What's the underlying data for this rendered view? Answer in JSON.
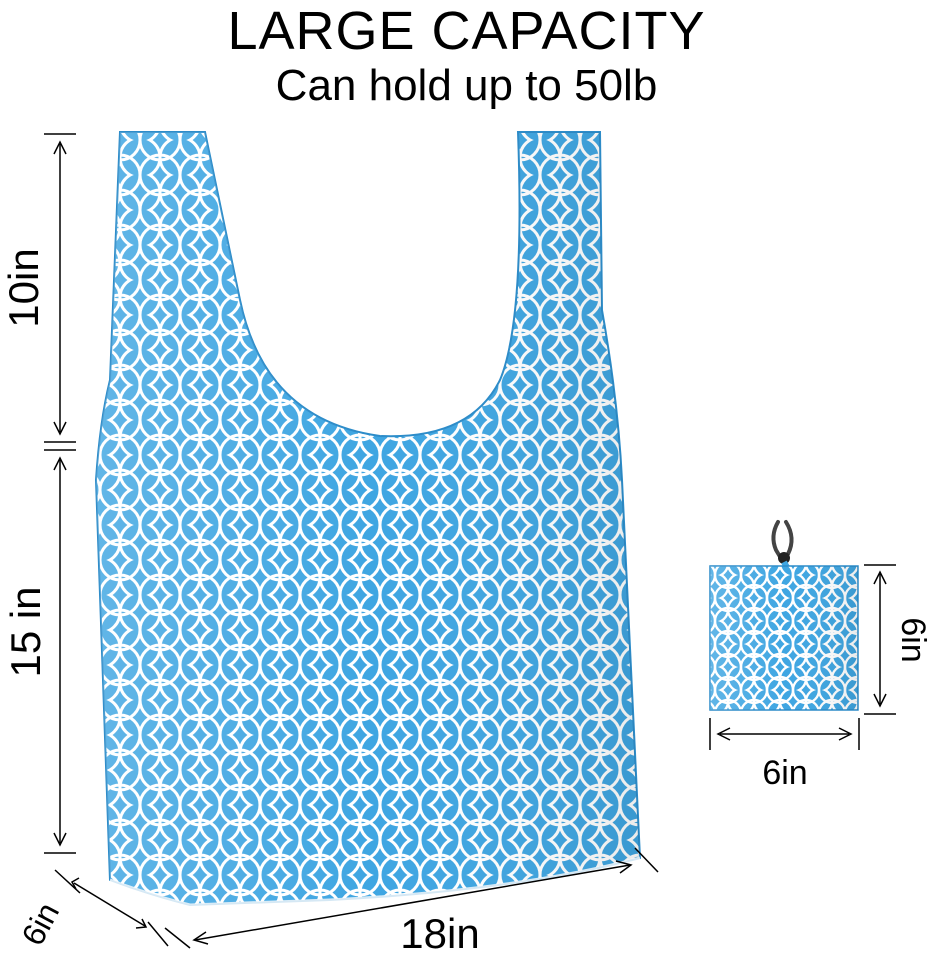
{
  "headline": "LARGE CAPACITY",
  "subheadline": "Can hold up to 50lb",
  "bag": {
    "pattern": "flower-of-life",
    "colors": {
      "blue": "#3fa6e2",
      "blue_light": "#7ec8f0",
      "white": "#ffffff"
    }
  },
  "dimensions": {
    "handle_height": "10in",
    "body_height": "15 in",
    "width": "18in",
    "depth": "6in"
  },
  "pouch": {
    "height": "6in",
    "width": "6in"
  }
}
